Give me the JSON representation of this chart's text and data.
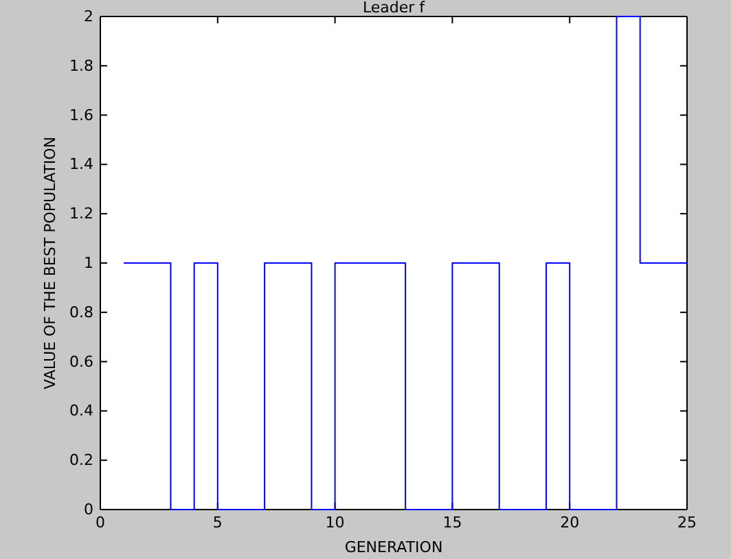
{
  "chart_data": {
    "type": "step",
    "title": "Leader f",
    "xlabel": "GENERATION",
    "ylabel": "VALUE OF THE BEST POPULATION",
    "x": [
      1,
      2,
      3,
      4,
      5,
      6,
      7,
      8,
      9,
      10,
      11,
      12,
      13,
      14,
      15,
      16,
      17,
      18,
      19,
      20,
      21,
      22,
      23,
      24,
      25
    ],
    "series": [
      {
        "color": "#0000ff",
        "values": [
          1,
          1,
          0,
          1,
          0,
          0,
          1,
          1,
          0,
          1,
          1,
          1,
          0,
          0,
          1,
          1,
          0,
          0,
          1,
          0,
          0,
          2,
          1,
          1,
          1
        ]
      }
    ],
    "xlim": [
      0,
      25
    ],
    "xticks": [
      0,
      5,
      10,
      15,
      20,
      25
    ],
    "ylim": [
      0,
      2
    ],
    "yticks": [
      0,
      0.2,
      0.4,
      0.6,
      0.8,
      1,
      1.2,
      1.4,
      1.6,
      1.8,
      2
    ],
    "grid": false
  }
}
